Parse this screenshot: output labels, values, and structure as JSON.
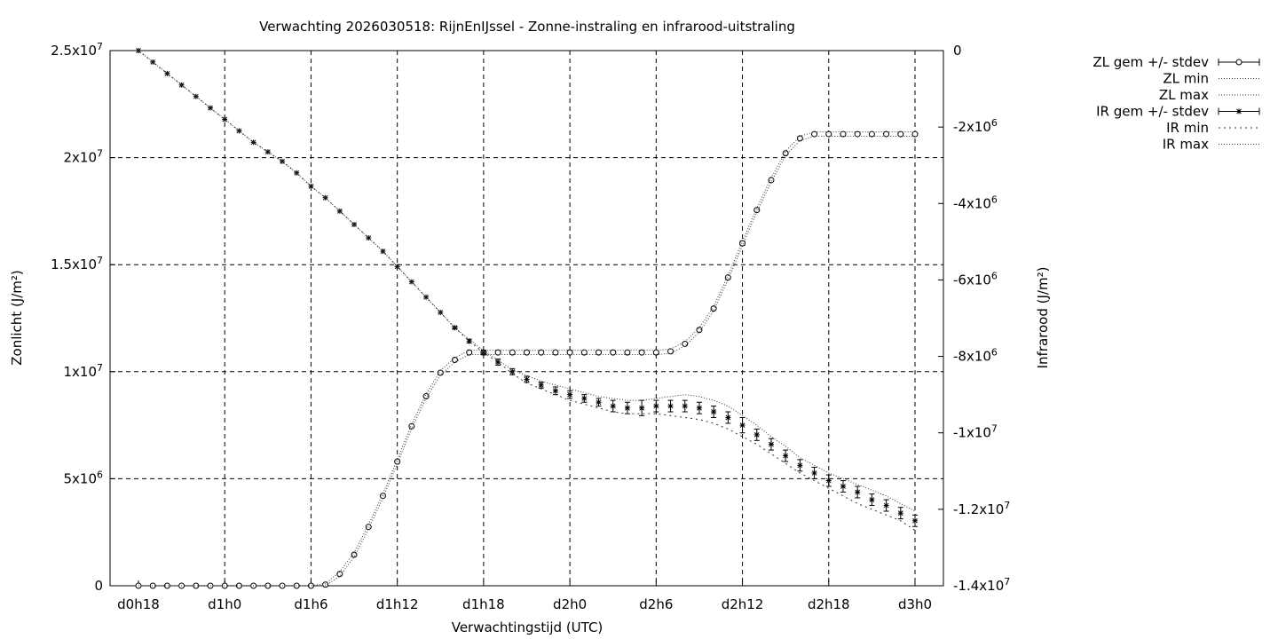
{
  "chart_data": {
    "type": "line",
    "title": "Verwachting 2026030518: RijnEnIJssel - Zonne-instraling en infrarood-uitstraling",
    "xlabel": "Verwachtingstijd (UTC)",
    "ylabel": "Zonlicht (J/m²)",
    "y2label": "Infrarood (J/m²)",
    "xlim": [
      18,
      72
    ],
    "ylim": [
      0,
      25000000
    ],
    "y2lim": [
      -14000000,
      0
    ],
    "grid": true,
    "legend_position": "right",
    "x_ticks": [
      {
        "value": 18,
        "label": "d0h18"
      },
      {
        "value": 24,
        "label": "d1h0"
      },
      {
        "value": 30,
        "label": "d1h6"
      },
      {
        "value": 36,
        "label": "d1h12"
      },
      {
        "value": 42,
        "label": "d1h18"
      },
      {
        "value": 48,
        "label": "d2h0"
      },
      {
        "value": 54,
        "label": "d2h6"
      },
      {
        "value": 60,
        "label": "d2h12"
      },
      {
        "value": 66,
        "label": "d2h18"
      },
      {
        "value": 72,
        "label": "d3h0"
      }
    ],
    "y_ticks": [
      {
        "value": 0,
        "label": "0"
      },
      {
        "value": 5000000,
        "label": "5x10",
        "sup": "6"
      },
      {
        "value": 10000000,
        "label": "1x10",
        "sup": "7"
      },
      {
        "value": 15000000,
        "label": "1.5x10",
        "sup": "7"
      },
      {
        "value": 20000000,
        "label": "2x10",
        "sup": "7"
      },
      {
        "value": 25000000,
        "label": "2.5x10",
        "sup": "7"
      }
    ],
    "y2_ticks": [
      {
        "value": 0,
        "label": "0"
      },
      {
        "value": -2000000,
        "label": "-2x10",
        "sup": "6"
      },
      {
        "value": -4000000,
        "label": "-4x10",
        "sup": "6"
      },
      {
        "value": -6000000,
        "label": "-6x10",
        "sup": "6"
      },
      {
        "value": -8000000,
        "label": "-8x10",
        "sup": "6"
      },
      {
        "value": -10000000,
        "label": "-1x10",
        "sup": "7"
      },
      {
        "value": -12000000,
        "label": "-1.2x10",
        "sup": "7"
      },
      {
        "value": -14000000,
        "label": "-1.4x10",
        "sup": "7"
      }
    ],
    "x": [
      18,
      19,
      20,
      21,
      22,
      23,
      24,
      25,
      26,
      27,
      28,
      29,
      30,
      31,
      32,
      33,
      34,
      35,
      36,
      37,
      38,
      39,
      40,
      41,
      42,
      43,
      44,
      45,
      46,
      47,
      48,
      49,
      50,
      51,
      52,
      53,
      54,
      55,
      56,
      57,
      58,
      59,
      60,
      61,
      62,
      63,
      64,
      65,
      66,
      67,
      68,
      69,
      70,
      71,
      72
    ],
    "series": [
      {
        "name": "ZL gem +/- stdev",
        "axis": "y",
        "marker": "circle",
        "values": [
          0,
          0,
          0,
          0,
          0,
          0,
          0,
          0,
          0,
          0,
          0,
          0,
          0,
          50000,
          550000,
          1450000,
          2750000,
          4200000,
          5800000,
          7450000,
          8850000,
          9950000,
          10550000,
          10900000,
          10900000,
          10900000,
          10900000,
          10900000,
          10900000,
          10900000,
          10900000,
          10900000,
          10900000,
          10900000,
          10900000,
          10900000,
          10900000,
          10950000,
          11300000,
          11950000,
          12950000,
          14400000,
          16000000,
          17550000,
          18950000,
          20200000,
          20900000,
          21100000,
          21100000,
          21100000,
          21100000,
          21100000,
          21100000,
          21100000,
          21100000
        ],
        "stdev": [
          0,
          0,
          0,
          0,
          0,
          0,
          0,
          0,
          0,
          0,
          0,
          0,
          0,
          0,
          0,
          0,
          0,
          0,
          0,
          0,
          0,
          0,
          0,
          0,
          0,
          0,
          0,
          0,
          0,
          0,
          0,
          0,
          0,
          0,
          0,
          0,
          0,
          0,
          0,
          0,
          0,
          0,
          100000,
          0,
          0,
          0,
          0,
          0,
          0,
          0,
          0,
          0,
          0,
          0,
          0
        ]
      },
      {
        "name": "ZL min",
        "axis": "y",
        "style": "dotted",
        "values": [
          0,
          0,
          0,
          0,
          0,
          0,
          0,
          0,
          0,
          0,
          0,
          0,
          0,
          0,
          450000,
          1350000,
          2650000,
          4100000,
          5700000,
          7350000,
          8750000,
          9850000,
          10450000,
          10800000,
          10800000,
          10800000,
          10800000,
          10800000,
          10800000,
          10800000,
          10800000,
          10800000,
          10800000,
          10800000,
          10800000,
          10800000,
          10800000,
          10850000,
          11200000,
          11850000,
          12850000,
          14300000,
          15900000,
          17450000,
          18850000,
          20100000,
          20800000,
          21000000,
          21000000,
          21000000,
          21000000,
          21000000,
          21000000,
          21000000,
          21000000
        ]
      },
      {
        "name": "ZL max",
        "axis": "y",
        "style": "dotted",
        "values": [
          0,
          0,
          0,
          0,
          0,
          0,
          0,
          0,
          0,
          0,
          0,
          0,
          0,
          100000,
          650000,
          1550000,
          2850000,
          4300000,
          5900000,
          7550000,
          8950000,
          10050000,
          10650000,
          11000000,
          11000000,
          11000000,
          11000000,
          11000000,
          11000000,
          11000000,
          11000000,
          11000000,
          11000000,
          11000000,
          11000000,
          11000000,
          11000000,
          11050000,
          11400000,
          12050000,
          13050000,
          14500000,
          16100000,
          17650000,
          19050000,
          20300000,
          21000000,
          21200000,
          21200000,
          21200000,
          21200000,
          21200000,
          21200000,
          21200000,
          21200000
        ]
      },
      {
        "name": "IR gem +/- stdev",
        "axis": "y2",
        "marker": "star",
        "values": [
          0,
          -300000,
          -600000,
          -900000,
          -1200000,
          -1500000,
          -1800000,
          -2100000,
          -2400000,
          -2650000,
          -2900000,
          -3200000,
          -3550000,
          -3850000,
          -4200000,
          -4550000,
          -4900000,
          -5250000,
          -5650000,
          -6050000,
          -6450000,
          -6850000,
          -7250000,
          -7600000,
          -7900000,
          -8150000,
          -8400000,
          -8600000,
          -8750000,
          -8900000,
          -9000000,
          -9100000,
          -9200000,
          -9300000,
          -9350000,
          -9350000,
          -9300000,
          -9300000,
          -9300000,
          -9350000,
          -9450000,
          -9600000,
          -9800000,
          -10050000,
          -10300000,
          -10600000,
          -10850000,
          -11050000,
          -11250000,
          -11400000,
          -11550000,
          -11750000,
          -11900000,
          -12100000,
          -12300000
        ],
        "stdev": [
          0,
          0,
          0,
          0,
          0,
          0,
          0,
          0,
          0,
          0,
          0,
          0,
          0,
          0,
          0,
          0,
          0,
          0,
          0,
          0,
          0,
          0,
          30000,
          50000,
          60000,
          80000,
          80000,
          80000,
          80000,
          100000,
          100000,
          100000,
          100000,
          150000,
          150000,
          200000,
          150000,
          150000,
          150000,
          150000,
          150000,
          150000,
          200000,
          150000,
          150000,
          150000,
          150000,
          150000,
          150000,
          150000,
          150000,
          150000,
          150000,
          150000,
          150000
        ]
      },
      {
        "name": "IR min",
        "axis": "y2",
        "style": "dotted",
        "values": [
          0,
          -300000,
          -600000,
          -900000,
          -1200000,
          -1500000,
          -1800000,
          -2100000,
          -2400000,
          -2650000,
          -2900000,
          -3200000,
          -3550000,
          -3850000,
          -4200000,
          -4550000,
          -4900000,
          -5250000,
          -5650000,
          -6050000,
          -6450000,
          -6850000,
          -7250000,
          -7600000,
          -7900000,
          -8150000,
          -8450000,
          -8700000,
          -8850000,
          -9000000,
          -9150000,
          -9250000,
          -9350000,
          -9450000,
          -9500000,
          -9500000,
          -9500000,
          -9550000,
          -9600000,
          -9650000,
          -9750000,
          -9900000,
          -10100000,
          -10300000,
          -10550000,
          -10800000,
          -11050000,
          -11250000,
          -11450000,
          -11650000,
          -11850000,
          -12000000,
          -12150000,
          -12300000,
          -12550000
        ]
      },
      {
        "name": "IR max",
        "axis": "y2",
        "style": "dotted",
        "values": [
          0,
          -300000,
          -600000,
          -900000,
          -1200000,
          -1500000,
          -1800000,
          -2100000,
          -2400000,
          -2650000,
          -2900000,
          -3200000,
          -3550000,
          -3850000,
          -4200000,
          -4550000,
          -4900000,
          -5250000,
          -5650000,
          -6050000,
          -6450000,
          -6850000,
          -7250000,
          -7550000,
          -7850000,
          -8100000,
          -8350000,
          -8500000,
          -8650000,
          -8750000,
          -8850000,
          -8950000,
          -9050000,
          -9100000,
          -9150000,
          -9150000,
          -9100000,
          -9050000,
          -9000000,
          -9050000,
          -9150000,
          -9300000,
          -9550000,
          -9800000,
          -10100000,
          -10350000,
          -10650000,
          -10850000,
          -11050000,
          -11200000,
          -11350000,
          -11500000,
          -11650000,
          -11850000,
          -12050000
        ]
      }
    ]
  }
}
